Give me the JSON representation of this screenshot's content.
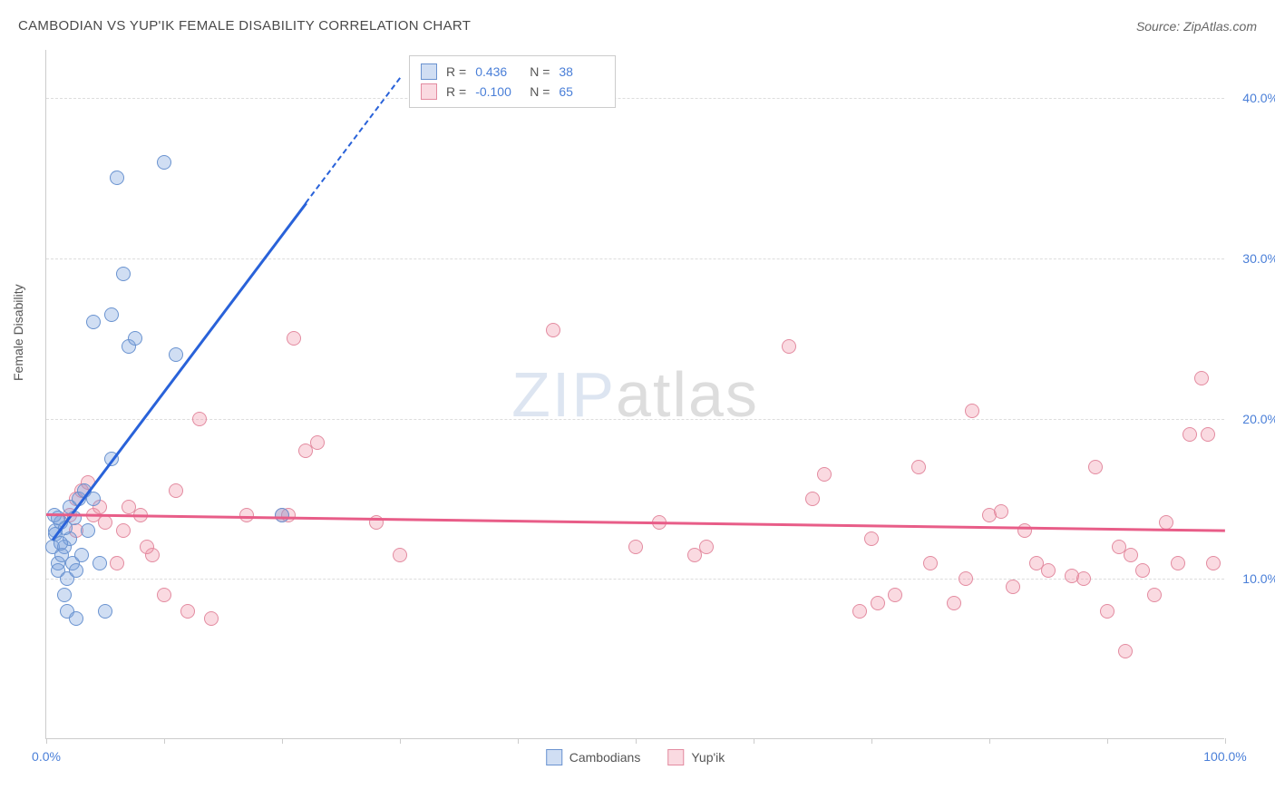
{
  "header": {
    "title": "CAMBODIAN VS YUP'IK FEMALE DISABILITY CORRELATION CHART",
    "source": "Source: ZipAtlas.com"
  },
  "chart": {
    "type": "scatter",
    "ylabel": "Female Disability",
    "xlim": [
      0,
      100
    ],
    "ylim": [
      0,
      43
    ],
    "x_ticks": [
      0,
      10,
      20,
      30,
      40,
      50,
      60,
      70,
      80,
      90,
      100
    ],
    "x_tick_labels": {
      "0": "0.0%",
      "100": "100.0%"
    },
    "y_ticks": [
      10,
      20,
      30,
      40
    ],
    "y_tick_labels": {
      "10": "10.0%",
      "20": "20.0%",
      "30": "30.0%",
      "40": "40.0%"
    },
    "grid_color": "#dddddd",
    "background_color": "#ffffff",
    "axis_color": "#cccccc",
    "tick_label_color": "#4a7fd8",
    "point_radius": 8,
    "series": {
      "cambodians": {
        "label": "Cambodians",
        "fill": "rgba(120,160,220,0.35)",
        "stroke": "#6a93d0",
        "line_color": "#2962d9",
        "R": "0.436",
        "N": "38",
        "trend": {
          "x1": 0.5,
          "y1": 12.5,
          "x2": 22,
          "y2": 33.5,
          "dash_to_x": 30,
          "dash_to_y": 41.3
        },
        "points": [
          [
            0.5,
            12
          ],
          [
            0.8,
            13
          ],
          [
            1,
            11
          ],
          [
            1.2,
            13.5
          ],
          [
            1,
            10.5
          ],
          [
            1.5,
            12
          ],
          [
            0.7,
            14
          ],
          [
            1.3,
            11.5
          ],
          [
            1.8,
            10
          ],
          [
            2,
            12.5
          ],
          [
            2.2,
            11
          ],
          [
            1.5,
            9
          ],
          [
            1.8,
            8
          ],
          [
            2.5,
            10.5
          ],
          [
            3,
            11.5
          ],
          [
            3.5,
            13
          ],
          [
            2,
            14.5
          ],
          [
            2.8,
            15
          ],
          [
            3.2,
            15.5
          ],
          [
            4,
            15
          ],
          [
            4.5,
            11
          ],
          [
            5,
            8
          ],
          [
            5.5,
            17.5
          ],
          [
            6,
            35
          ],
          [
            7,
            24.5
          ],
          [
            7.5,
            25
          ],
          [
            10,
            36
          ],
          [
            11,
            24
          ],
          [
            4,
            26
          ],
          [
            5.5,
            26.5
          ],
          [
            6.5,
            29
          ],
          [
            2.5,
            7.5
          ],
          [
            1,
            13.8
          ],
          [
            0.8,
            12.8
          ],
          [
            1.2,
            12.2
          ],
          [
            1.6,
            13.2
          ],
          [
            2.4,
            13.8
          ],
          [
            20,
            14
          ]
        ]
      },
      "yupik": {
        "label": "Yup'ik",
        "fill": "rgba(240,150,170,0.35)",
        "stroke": "#e38ba0",
        "line_color": "#e85d88",
        "R": "-0.100",
        "N": "65",
        "trend": {
          "x1": 0,
          "y1": 14.1,
          "x2": 100,
          "y2": 13.1
        },
        "points": [
          [
            2,
            14
          ],
          [
            2.5,
            15
          ],
          [
            3,
            15.5
          ],
          [
            3.5,
            16
          ],
          [
            4,
            14
          ],
          [
            5,
            13.5
          ],
          [
            6,
            11
          ],
          [
            7,
            14.5
          ],
          [
            8,
            14
          ],
          [
            9,
            11.5
          ],
          [
            10,
            9
          ],
          [
            11,
            15.5
          ],
          [
            12,
            8
          ],
          [
            14,
            7.5
          ],
          [
            13,
            20
          ],
          [
            20,
            14
          ],
          [
            21,
            25
          ],
          [
            22,
            18
          ],
          [
            23,
            18.5
          ],
          [
            20.5,
            14
          ],
          [
            28,
            13.5
          ],
          [
            30,
            11.5
          ],
          [
            43,
            25.5
          ],
          [
            50,
            12
          ],
          [
            52,
            13.5
          ],
          [
            55,
            11.5
          ],
          [
            56,
            12
          ],
          [
            63,
            24.5
          ],
          [
            65,
            15
          ],
          [
            66,
            16.5
          ],
          [
            69,
            8
          ],
          [
            70,
            12.5
          ],
          [
            70.5,
            8.5
          ],
          [
            72,
            9
          ],
          [
            74,
            17
          ],
          [
            75,
            11
          ],
          [
            77,
            8.5
          ],
          [
            78,
            10
          ],
          [
            78.5,
            20.5
          ],
          [
            80,
            14
          ],
          [
            81,
            14.2
          ],
          [
            82,
            9.5
          ],
          [
            83,
            13
          ],
          [
            84,
            11
          ],
          [
            85,
            10.5
          ],
          [
            87,
            10.2
          ],
          [
            88,
            10
          ],
          [
            89,
            17
          ],
          [
            90,
            8
          ],
          [
            91,
            12
          ],
          [
            91.5,
            5.5
          ],
          [
            92,
            11.5
          ],
          [
            93,
            10.5
          ],
          [
            94,
            9
          ],
          [
            95,
            13.5
          ],
          [
            96,
            11
          ],
          [
            97,
            19
          ],
          [
            98,
            22.5
          ],
          [
            98.5,
            19
          ],
          [
            99,
            11
          ],
          [
            2.5,
            13
          ],
          [
            4.5,
            14.5
          ],
          [
            6.5,
            13
          ],
          [
            8.5,
            12
          ],
          [
            17,
            14
          ]
        ]
      }
    },
    "watermark": {
      "zip": "ZIP",
      "atlas": "atlas"
    },
    "legend_labels": {
      "R": "R =",
      "N": "N ="
    }
  }
}
